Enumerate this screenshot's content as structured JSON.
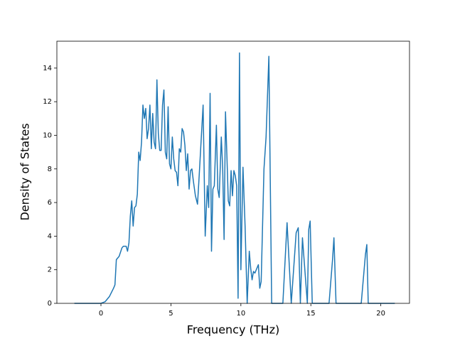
{
  "chart_data": {
    "type": "line",
    "xlabel": "Frequency (THz)",
    "ylabel": "Density of States",
    "color": "#1f77b4",
    "x": [
      -1.9,
      -0.5,
      0,
      0.3,
      0.6,
      0.9,
      1.0,
      1.1,
      1.3,
      1.5,
      1.6,
      1.8,
      1.9,
      2.0,
      2.1,
      2.2,
      2.3,
      2.4,
      2.5,
      2.6,
      2.7,
      2.8,
      2.9,
      3.0,
      3.1,
      3.2,
      3.3,
      3.4,
      3.5,
      3.6,
      3.7,
      3.8,
      3.9,
      4.0,
      4.1,
      4.2,
      4.3,
      4.4,
      4.5,
      4.6,
      4.7,
      4.8,
      4.9,
      5.0,
      5.1,
      5.2,
      5.3,
      5.4,
      5.5,
      5.6,
      5.7,
      5.8,
      5.9,
      6.0,
      6.1,
      6.2,
      6.3,
      6.4,
      6.5,
      6.6,
      6.75,
      6.9,
      7.0,
      7.3,
      7.45,
      7.6,
      7.7,
      7.8,
      7.9,
      8.0,
      8.1,
      8.25,
      8.35,
      8.45,
      8.6,
      8.7,
      8.8,
      8.9,
      9.0,
      9.1,
      9.2,
      9.3,
      9.4,
      9.5,
      9.6,
      9.7,
      9.8,
      9.9,
      10.0,
      10.15,
      10.3,
      10.45,
      10.6,
      10.7,
      10.8,
      10.9,
      11.0,
      11.1,
      11.25,
      11.35,
      11.45,
      11.65,
      11.8,
      12.0,
      12.2,
      13.0,
      13.3,
      13.6,
      13.95,
      14.1,
      14.25,
      14.4,
      14.75,
      14.85,
      14.95,
      15.1,
      16.3,
      16.55,
      16.65,
      16.8,
      18.6,
      18.9,
      19.0,
      19.1,
      21.0
    ],
    "values": [
      0,
      0,
      0,
      0.1,
      0.4,
      0.9,
      1.1,
      2.6,
      2.8,
      3.3,
      3.4,
      3.4,
      3.1,
      3.6,
      5.2,
      6.1,
      4.6,
      5.7,
      5.8,
      6.5,
      9.0,
      8.5,
      9.6,
      11.8,
      11.0,
      11.6,
      9.8,
      10.4,
      11.8,
      9.2,
      11.3,
      9.6,
      9.2,
      13.3,
      10.1,
      9.1,
      9.1,
      11.8,
      12.7,
      9.0,
      8.6,
      11.7,
      8.3,
      8.0,
      9.9,
      8.6,
      7.9,
      7.8,
      7.0,
      9.2,
      9.0,
      10.4,
      10.2,
      9.4,
      7.9,
      8.9,
      6.8,
      7.9,
      8.0,
      7.3,
      6.4,
      5.9,
      7.3,
      11.8,
      4.0,
      7.0,
      5.7,
      12.5,
      3.1,
      6.8,
      7.0,
      10.6,
      6.8,
      6.3,
      9.9,
      8.0,
      3.8,
      11.4,
      8.8,
      6.1,
      5.8,
      7.9,
      6.4,
      7.9,
      7.6,
      7.0,
      0.3,
      14.9,
      2.0,
      8.1,
      4.6,
      0,
      3.1,
      2.1,
      1.4,
      1.9,
      1.8,
      2.0,
      2.3,
      0.9,
      1.3,
      8.0,
      9.9,
      14.7,
      0,
      0,
      4.8,
      0,
      4.2,
      4.5,
      0,
      3.9,
      0,
      4.4,
      4.9,
      0,
      0,
      2.6,
      3.9,
      0,
      0,
      2.9,
      3.5,
      0,
      0
    ],
    "xlim": [
      -3.15,
      22.05
    ],
    "xticks": [
      0,
      5,
      10,
      15,
      20
    ],
    "ylim": [
      0,
      15.6
    ],
    "yticks": [
      0,
      2,
      4,
      6,
      8,
      10,
      12,
      14
    ]
  }
}
